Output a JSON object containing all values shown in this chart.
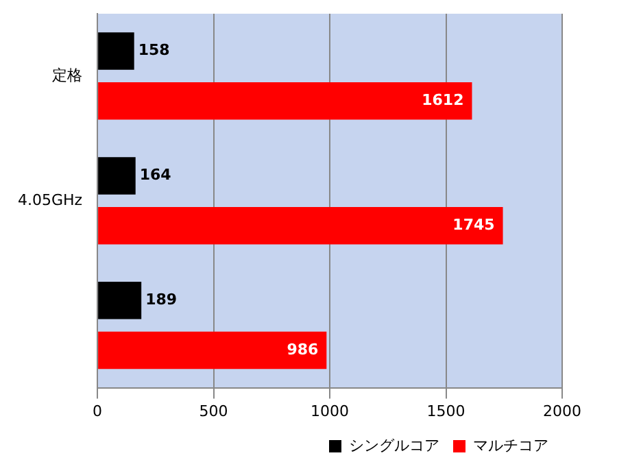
{
  "chart_data": {
    "type": "bar",
    "orientation": "horizontal",
    "categories": [
      "定格",
      "4.05GHz",
      null
    ],
    "series": [
      {
        "name": "シングルコア",
        "color": "#000000",
        "values": [
          158,
          164,
          189
        ]
      },
      {
        "name": "マルチコア",
        "color": "#ff0000",
        "values": [
          1612,
          1745,
          986
        ]
      }
    ],
    "xlim": [
      0,
      2000
    ],
    "xticks": [
      0,
      500,
      1000,
      1500,
      2000
    ],
    "grid": "x",
    "legend": "bottom right",
    "data_labels": true
  }
}
